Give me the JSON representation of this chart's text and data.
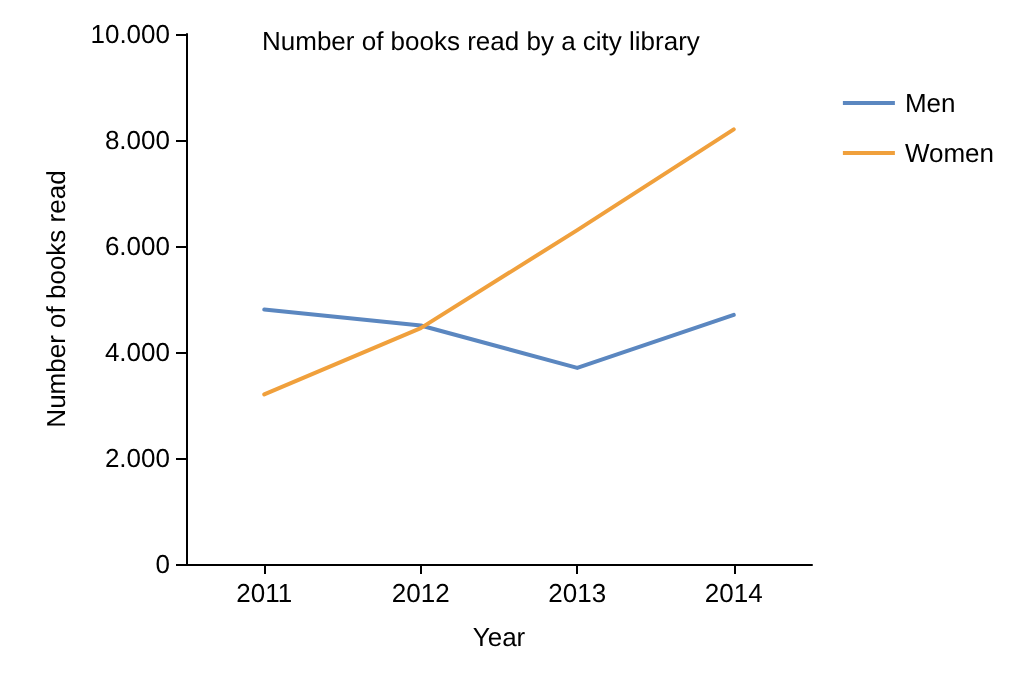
{
  "chart_data": {
    "type": "line",
    "title": "Number of books read by a city library",
    "xlabel": "Year",
    "ylabel": "Number of books read",
    "categories": [
      "2011",
      "2012",
      "2013",
      "2014"
    ],
    "series": [
      {
        "name": "Men",
        "color": "#5b87c0",
        "values": [
          4800,
          4500,
          3700,
          4700
        ]
      },
      {
        "name": "Women",
        "color": "#f0a03c",
        "values": [
          3200,
          4450,
          6300,
          8200
        ]
      }
    ],
    "ylim": [
      0,
      10000
    ],
    "yticks": [
      {
        "value": 0,
        "label": "0"
      },
      {
        "value": 2000,
        "label": "2.000"
      },
      {
        "value": 4000,
        "label": "4.000"
      },
      {
        "value": 6000,
        "label": "6.000"
      },
      {
        "value": 8000,
        "label": "8.000"
      },
      {
        "value": 10000,
        "label": "10.000"
      }
    ],
    "grid": false,
    "legend": "top right",
    "marker": "none",
    "line_style": "solid"
  }
}
